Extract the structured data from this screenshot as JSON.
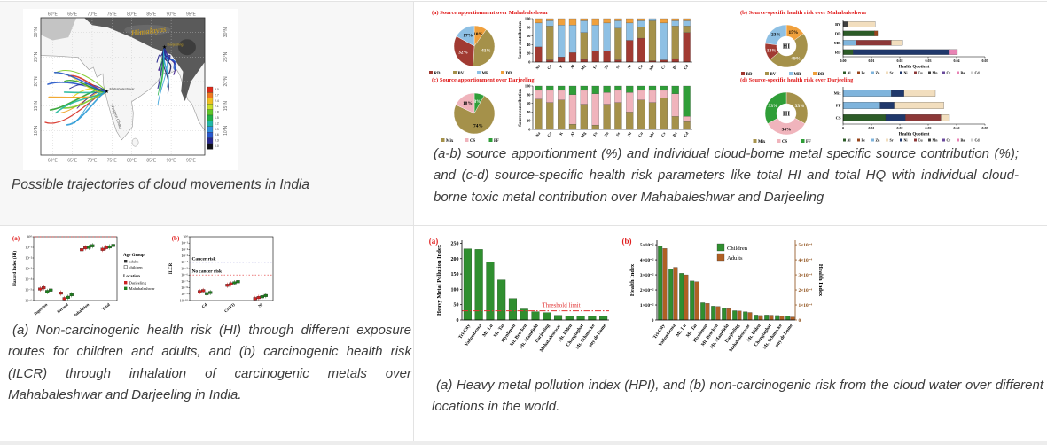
{
  "page": {
    "border_color": "#e3e3e3",
    "topleft_bg": "#f7f7f7",
    "strip_bg": "#ededed"
  },
  "captions": {
    "map": "Possible trajectories of cloud movements in India",
    "source": "(a-b) source apportionment (%) and individual cloud-borne metal specific source contribution (%); and (c-d) source-specific health risk parameters like total HI and total HQ with individual cloud-borne toxic metal contribution over Mahabaleshwar and Darjeeling",
    "risk": "(a) Non-carcinogenic health risk (HI) through different exposure routes for children and adults, and (b) carcinogenic health risk (ILCR) through inhalation of carcinogenic metals over Mahabaleshwar and Darjeeling in India.",
    "hpi": "(a) Heavy metal pollution index (HPI), and (b) non-carcinogenic risk from the cloud water over different locations in the world."
  },
  "map": {
    "lon_labels": [
      "60°E",
      "65°E",
      "70°E",
      "75°E",
      "80°E",
      "85°E",
      "90°E",
      "95°E"
    ],
    "lat_labels": [
      "30°N",
      "25°N",
      "20°N",
      "15°N",
      "10°N"
    ],
    "himalayas": "Himalayas",
    "western_ghats": "Western Ghats",
    "sites": [
      {
        "name": "Mahabaleshwar",
        "lon": 73.7,
        "lat": 18.0,
        "label_color": "#444444"
      },
      {
        "name": "Darjeeling",
        "lon": 88.3,
        "lat": 27.0,
        "label_color": "#c8a422"
      }
    ],
    "colorbar_labels": [
      "3.0",
      "2.7",
      "2.4",
      "2.1",
      "1.8",
      "1.5",
      "1.2",
      "0.9",
      "0.6",
      "0.3",
      "0.0"
    ],
    "colorbar_colors": [
      "#e02818",
      "#f07820",
      "#f0c020",
      "#c8e028",
      "#60c828",
      "#20b048",
      "#20b8a8",
      "#3090e0",
      "#2858d0",
      "#282890",
      "#101018"
    ],
    "traj_colors_west": [
      "#d62a1f",
      "#f0a01e",
      "#e8d822",
      "#7ec822",
      "#2aa02a",
      "#22b89a",
      "#2a9ad6",
      "#2255c8",
      "#202a96",
      "#43108c"
    ],
    "traj_colors_east": [
      "#282890",
      "#3a1a8c",
      "#1a1a5c",
      "#2255c8",
      "#20b048",
      "#2a9ad6"
    ]
  },
  "chart_data": [
    {
      "id": "pie_maha",
      "type": "pie",
      "title": "(a)  Source apportionment over Mahabaleshwar",
      "slices": [
        {
          "label": "DD",
          "pct": "10%",
          "value": 10,
          "color": "#f0a03c",
          "lc": "#000000"
        },
        {
          "label": "BV",
          "pct": "41%",
          "value": 41,
          "color": "#a5914a",
          "lc": "#ffffff"
        },
        {
          "label": "RD",
          "pct": "32%",
          "value": 32,
          "color": "#a13a32",
          "lc": "#ffffff"
        },
        {
          "label": "MR",
          "pct": "17%",
          "value": 17,
          "color": "#8ec0e4",
          "lc": "#000000"
        }
      ],
      "legend": [
        "RD",
        "BV",
        "MR",
        "DD"
      ],
      "legend_colors": [
        "#a13a32",
        "#a5914a",
        "#8ec0e4",
        "#f0a03c"
      ]
    },
    {
      "id": "bars_maha",
      "type": "bar",
      "stacked": true,
      "ylabel": "Source contribution",
      "yticks": [
        0,
        20,
        40,
        60,
        80,
        100
      ],
      "categories": [
        "Na",
        "Ca",
        "K",
        "Al",
        "Mg",
        "Fe",
        "Zn",
        "Sr",
        "Ni",
        "Cu",
        "Mn",
        "Cr",
        "Ba",
        "Cd"
      ],
      "series": [
        {
          "name": "RD",
          "color": "#a13a32",
          "values": [
            35,
            5,
            12,
            22,
            6,
            26,
            25,
            5,
            50,
            55,
            3,
            5,
            8,
            68
          ]
        },
        {
          "name": "BV",
          "color": "#a5914a",
          "values": [
            0,
            78,
            0,
            0,
            62,
            0,
            0,
            73,
            0,
            25,
            92,
            0,
            75,
            15
          ]
        },
        {
          "name": "MR",
          "color": "#8ec0e4",
          "values": [
            55,
            12,
            73,
            63,
            27,
            59,
            65,
            17,
            40,
            15,
            5,
            85,
            12,
            12
          ]
        },
        {
          "name": "DD",
          "color": "#f0a03c",
          "values": [
            10,
            5,
            15,
            15,
            5,
            15,
            10,
            5,
            10,
            5,
            0,
            10,
            5,
            5
          ]
        }
      ]
    },
    {
      "id": "donut_maha",
      "type": "pie",
      "donut": true,
      "center": "HI",
      "title": "(b)  Source-specific health risk over Mahabaleshwar",
      "slices": [
        {
          "label": "DD",
          "pct": "15%",
          "value": 15,
          "color": "#f0a03c",
          "lc": "#000000"
        },
        {
          "label": "BV",
          "pct": "49%",
          "value": 49,
          "color": "#a5914a",
          "lc": "#ffffff"
        },
        {
          "label": "RD",
          "pct": "13%",
          "value": 13,
          "color": "#a13a32",
          "lc": "#ffffff"
        },
        {
          "label": "MR",
          "pct": "23%",
          "value": 23,
          "color": "#8ec0e4",
          "lc": "#000000"
        }
      ],
      "legend": [
        "RD",
        "BV",
        "MR",
        "DD"
      ],
      "legend_colors": [
        "#a13a32",
        "#a5914a",
        "#8ec0e4",
        "#f0a03c"
      ]
    },
    {
      "id": "hq_maha",
      "type": "bar",
      "horizontal": true,
      "xlabel": "Health Quotient",
      "xmax": 0.05,
      "xtick_labels": [
        "0.00",
        "0.01",
        "0.02",
        "0.03",
        "0.04",
        "0.05"
      ],
      "rows": [
        {
          "label": "BV",
          "segments": [
            [
              "Mn",
              0.0018
            ],
            [
              "Sr",
              0.0095
            ]
          ]
        },
        {
          "label": "DD",
          "segments": [
            [
              "Al",
              0.011
            ],
            [
              "Fe",
              0.0012
            ]
          ]
        },
        {
          "label": "MR",
          "segments": [
            [
              "Zn",
              0.0045
            ],
            [
              "Cu",
              0.0125
            ],
            [
              "Sr",
              0.004
            ]
          ]
        },
        {
          "label": "RD",
          "segments": [
            [
              "Al",
              0.0035
            ],
            [
              "Ni",
              0.034
            ],
            [
              "Ba",
              0.0028
            ]
          ]
        }
      ],
      "metals": [
        "Al",
        "Fe",
        "Zn",
        "Sr",
        "Ni",
        "Cu",
        "Mn",
        "Cr",
        "Ba",
        "Cd"
      ],
      "metal_colors": [
        "#2d5c28",
        "#97451b",
        "#7fb4dc",
        "#f2debe",
        "#20386b",
        "#8c3838",
        "#404040",
        "#6a4a9c",
        "#e883b4",
        "#cfcfcf"
      ]
    },
    {
      "id": "pie_darj",
      "type": "pie",
      "title": "(c)  Source apportionment over Darjeeling",
      "slices": [
        {
          "label": "FF",
          "pct": "8%",
          "value": 8,
          "color": "#2f9e38",
          "lc": "#ffffff"
        },
        {
          "label": "Mix",
          "pct": "74%",
          "value": 74,
          "color": "#a5914a",
          "lc": "#000000"
        },
        {
          "label": "CS",
          "pct": "18%",
          "value": 18,
          "color": "#f0b4bc",
          "lc": "#000000"
        }
      ],
      "legend": [
        "Mix",
        "CS",
        "FF"
      ],
      "legend_colors": [
        "#a5914a",
        "#f0b4bc",
        "#2f9e38"
      ]
    },
    {
      "id": "bars_darj",
      "type": "bar",
      "stacked": true,
      "ylabel": "Source contribution",
      "yticks": [
        0,
        20,
        40,
        60,
        80,
        100
      ],
      "categories": [
        "Na",
        "Ca",
        "K",
        "Al",
        "Mg",
        "Fe",
        "Zn",
        "Sr",
        "Ni",
        "Cu",
        "Mn",
        "Cr",
        "Ba",
        "Cd"
      ],
      "series": [
        {
          "name": "Mix",
          "color": "#a5914a",
          "values": [
            70,
            62,
            68,
            12,
            58,
            10,
            58,
            62,
            40,
            68,
            62,
            73,
            30,
            18
          ]
        },
        {
          "name": "CS",
          "color": "#f0b4bc",
          "values": [
            20,
            28,
            22,
            68,
            32,
            72,
            27,
            28,
            45,
            22,
            28,
            17,
            52,
            12
          ]
        },
        {
          "name": "FF",
          "color": "#2f9e38",
          "values": [
            10,
            10,
            10,
            20,
            10,
            18,
            15,
            10,
            15,
            10,
            10,
            10,
            18,
            70
          ]
        }
      ]
    },
    {
      "id": "donut_darj",
      "type": "pie",
      "donut": true,
      "center": "HI",
      "title": "(d)  Source-specific health risk over Darjeeling",
      "slices": [
        {
          "label": "Mix",
          "pct": "33%",
          "value": 33,
          "color": "#a5914a",
          "lc": "#ffffff"
        },
        {
          "label": "CS",
          "pct": "34%",
          "value": 34,
          "color": "#f0b4bc",
          "lc": "#000000"
        },
        {
          "label": "FF",
          "pct": "33%",
          "value": 33,
          "color": "#2f9e38",
          "lc": "#ffffff"
        }
      ],
      "legend": [
        "Mix",
        "CS",
        "FF"
      ],
      "legend_colors": [
        "#a5914a",
        "#f0b4bc",
        "#2f9e38"
      ]
    },
    {
      "id": "hq_darj",
      "type": "bar",
      "horizontal": true,
      "xlabel": "Health Quotient",
      "xmax": 0.05,
      "xtick_labels": [
        "0",
        "0.01",
        "0.02",
        "0.03",
        "0.04",
        "0.05"
      ],
      "rows": [
        {
          "label": "Mix",
          "segments": [
            [
              "Zn",
              0.017
            ],
            [
              "Ni",
              0.0045
            ],
            [
              "Sr",
              0.011
            ]
          ]
        },
        {
          "label": "FF",
          "segments": [
            [
              "Zn",
              0.013
            ],
            [
              "Ni",
              0.005
            ],
            [
              "Sr",
              0.0175
            ]
          ]
        },
        {
          "label": "CS",
          "segments": [
            [
              "Al",
              0.015
            ],
            [
              "Ni",
              0.007
            ],
            [
              "Cu",
              0.0125
            ],
            [
              "Sr",
              0.003
            ]
          ]
        }
      ],
      "metals": [
        "Al",
        "Fe",
        "Zn",
        "Sr",
        "Ni",
        "Cu",
        "Mn",
        "Cr",
        "Ba",
        "Cd"
      ],
      "metal_colors": [
        "#2d5c28",
        "#97451b",
        "#7fb4dc",
        "#f2debe",
        "#20386b",
        "#8c3838",
        "#404040",
        "#6a4a9c",
        "#e883b4",
        "#cfcfcf"
      ]
    },
    {
      "id": "hi_scatter",
      "type": "scatter",
      "label": "(a)",
      "ylabel": "Hazard Index (HI)",
      "decades": 6,
      "ytick_labels": [
        "10⁰",
        "10⁻¹",
        "10⁻²",
        "10⁻³",
        "10⁻⁴",
        "10⁻⁵",
        "10⁻⁶"
      ],
      "categories": [
        "Ingestion",
        "Dermal",
        "Inhalation",
        "Total"
      ],
      "series": [
        {
          "name": "Darjeeling adults",
          "color": "#cc2222",
          "values": [
            1.2e-05,
            5e-06,
            0.06,
            0.065
          ]
        },
        {
          "name": "Darjeeling children",
          "color": "#cc2222",
          "values": [
            1.6e-05,
            1.5e-06,
            0.09,
            0.095
          ]
        },
        {
          "name": "Mahabaleshwar adults",
          "color": "#1e7e1e",
          "values": [
            7e-06,
            2e-06,
            0.1,
            0.11
          ]
        },
        {
          "name": "Mahabaleshwar children",
          "color": "#1e7e1e",
          "values": [
            9.5e-06,
            3.5e-06,
            0.14,
            0.15
          ]
        }
      ],
      "reflines": [
        {
          "text": "",
          "value": 1,
          "color": "#e03030"
        }
      ],
      "legend": {
        "age_title": "Age Group",
        "age_items": [
          "adults",
          "children"
        ],
        "loc_title": "Location",
        "loc_items": [
          {
            "label": "Darjeeling",
            "color": "#cc2222"
          },
          {
            "label": "Mahabaleshwar",
            "color": "#1e7e1e"
          }
        ]
      }
    },
    {
      "id": "ilcr_scatter",
      "type": "scatter",
      "label": "(b)",
      "ylabel": "ILCR",
      "decades": 10,
      "ytick_labels": [
        "10⁰",
        "10⁻¹",
        "10⁻²",
        "10⁻³",
        "10⁻⁴",
        "10⁻⁵",
        "10⁻⁶",
        "10⁻⁷",
        "10⁻⁸",
        "10⁻⁹",
        "10⁻¹⁰"
      ],
      "categories": [
        "Cd",
        "Cr(VI)",
        "Ni"
      ],
      "series": [
        {
          "name": "Darjeeling adults",
          "color": "#cc2222",
          "values": [
            2.5e-09,
            2.5e-08,
            2e-10
          ]
        },
        {
          "name": "Darjeeling children",
          "color": "#cc2222",
          "values": [
            3.5e-09,
            4e-08,
            3e-10
          ]
        },
        {
          "name": "Mahabaleshwar adults",
          "color": "#1e7e1e",
          "values": [
            1.2e-09,
            6e-08,
            4e-10
          ]
        },
        {
          "name": "Mahabaleshwar children",
          "color": "#1e7e1e",
          "values": [
            1.8e-09,
            9e-08,
            6e-10
          ]
        }
      ],
      "reflines": [
        {
          "text": "Cancer risk",
          "value": 0.0001,
          "color": "#4444bb"
        },
        {
          "text": "No cancer risk",
          "value": 1e-06,
          "color": "#e03030"
        }
      ]
    },
    {
      "id": "hpi_bars",
      "type": "bar",
      "label": "(a)",
      "ylabel": "Heavy Metal Pollution Index",
      "yticks": [
        0,
        50,
        100,
        150,
        200,
        250
      ],
      "ymax": 260,
      "bar_color": "#2f8f2f",
      "categories": [
        "Tri-City",
        "Vallombrosa",
        "Mt. Lu",
        "Mt. Tai",
        "Plynlimon",
        "Mt. Brocken",
        "Mt. Mansfield",
        "Darjeeling",
        "Mahabaleshwar",
        "Mt. Elden",
        "Changlaghat",
        "Mt. Schmucke",
        "puy de Dome"
      ],
      "values": [
        232,
        230,
        190,
        131,
        70,
        36,
        27,
        24,
        15,
        13,
        13,
        12,
        12
      ],
      "threshold": {
        "label": "Threshold limit",
        "value": 30,
        "color": "#e03030"
      }
    },
    {
      "id": "hi_bars",
      "type": "bar",
      "grouped": true,
      "label": "(b)",
      "ymax": 5.3,
      "ylabel_left": "Health Index",
      "ylabel_right": "Health Index",
      "ytick_left": [
        "0",
        "1×10⁻²",
        "2×10⁻²",
        "3×10⁻²",
        "4×10⁻²",
        "5×10⁻²"
      ],
      "ytick_right": [
        "0",
        "1×10⁻⁴",
        "2×10⁻⁴",
        "3×10⁻⁴",
        "4×10⁻⁴",
        "5×10⁻⁴"
      ],
      "right_color": "#8b4a12",
      "categories": [
        "Tri-City",
        "Vallombrosa",
        "Mt. Lu",
        "Mt. Tai",
        "Plynlimon",
        "Mt. Brocken",
        "Mt. Mansfield",
        "Darjeeling",
        "Mahabaleshwar",
        "Mt. Elden",
        "Changlaghat",
        "Mt. Schmucke",
        "puy de Dome"
      ],
      "series": [
        {
          "name": "Children",
          "color": "#2f8f2f",
          "values": [
            4.9,
            3.4,
            3.1,
            2.6,
            1.15,
            0.92,
            0.8,
            0.62,
            0.55,
            0.33,
            0.33,
            0.3,
            0.25
          ]
        },
        {
          "name": "Adults",
          "color": "#b06024",
          "values": [
            4.75,
            3.5,
            3.0,
            2.55,
            1.1,
            0.9,
            0.75,
            0.6,
            0.5,
            0.3,
            0.32,
            0.28,
            0.2
          ]
        }
      ]
    }
  ]
}
